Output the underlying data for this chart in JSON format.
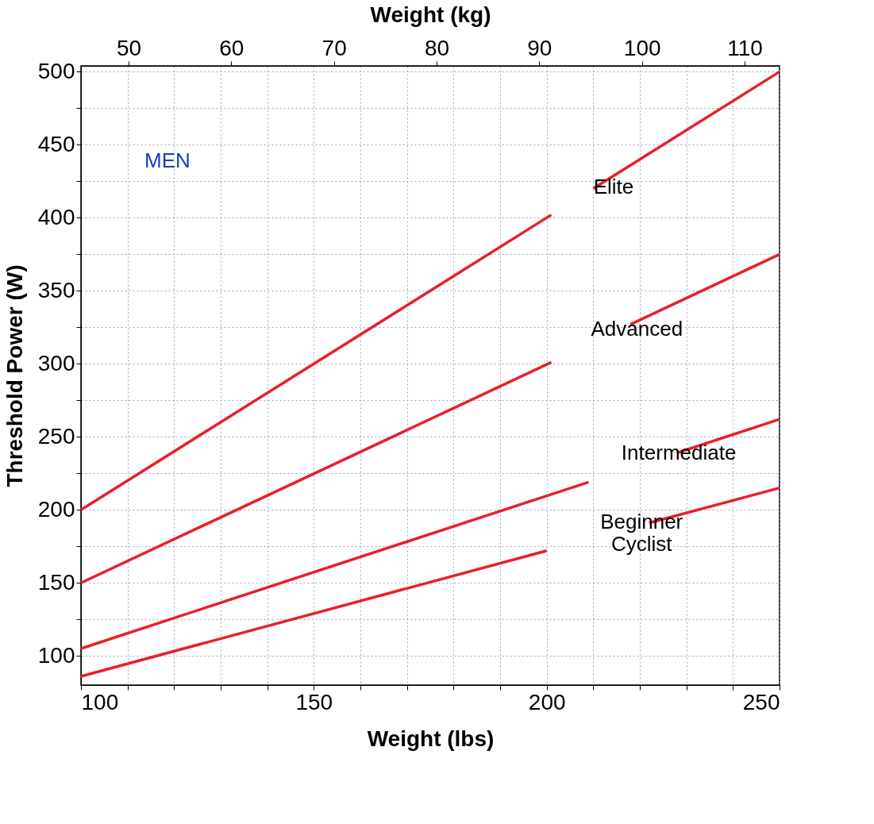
{
  "chart_data": {
    "type": "line",
    "xlabel": "Weight (lbs)",
    "ylabel": "Threshold Power (W)",
    "x2label": "Weight (kg)",
    "xlim": [
      100,
      250
    ],
    "ylim": [
      80,
      504
    ],
    "xticks": [
      100,
      {
        "value": 110,
        "label": null
      },
      {
        "value": 120,
        "label": null
      },
      {
        "value": 130,
        "label": null
      },
      {
        "value": 140,
        "label": null
      },
      150,
      {
        "value": 160,
        "label": null
      },
      {
        "value": 170,
        "label": null
      },
      {
        "value": 180,
        "label": null
      },
      {
        "value": 190,
        "label": null
      },
      200,
      {
        "value": 210,
        "label": null
      },
      {
        "value": 220,
        "label": null
      },
      {
        "value": 230,
        "label": null
      },
      {
        "value": 240,
        "label": null
      },
      250
    ],
    "yticks": [
      100,
      {
        "value": 125,
        "label": null
      },
      150,
      {
        "value": 175,
        "label": null
      },
      200,
      {
        "value": 225,
        "label": null
      },
      250,
      {
        "value": 275,
        "label": null
      },
      300,
      {
        "value": 325,
        "label": null
      },
      350,
      {
        "value": 375,
        "label": null
      },
      400,
      {
        "value": 425,
        "label": null
      },
      450,
      {
        "value": 475,
        "label": null
      },
      500
    ],
    "x2lim": [
      45.36,
      113.4
    ],
    "x2ticks": [
      50,
      60,
      70,
      80,
      90,
      100,
      110
    ],
    "grid": true,
    "line_style": "solid",
    "marker": "none",
    "annotations": [
      "MEN"
    ],
    "series": [
      {
        "name": "Elite",
        "color": "#e8202a",
        "x": [
          100,
          201,
          205,
          210,
          250
        ],
        "values": [
          200,
          402,
          null,
          420,
          500
        ]
      },
      {
        "name": "Advanced",
        "color": "#e8202a",
        "x": [
          100,
          201,
          210,
          218,
          250
        ],
        "values": [
          150,
          301,
          null,
          327,
          375
        ]
      },
      {
        "name": "Intermediate",
        "color": "#e8202a",
        "x": [
          100,
          209,
          219,
          228,
          250
        ],
        "values": [
          105,
          219,
          null,
          239,
          262
        ]
      },
      {
        "name": "Beginner Cyclist",
        "color": "#e8202a",
        "x": [
          100,
          200,
          211,
          222,
          250
        ],
        "values": [
          86,
          172,
          null,
          191,
          215
        ]
      }
    ]
  }
}
